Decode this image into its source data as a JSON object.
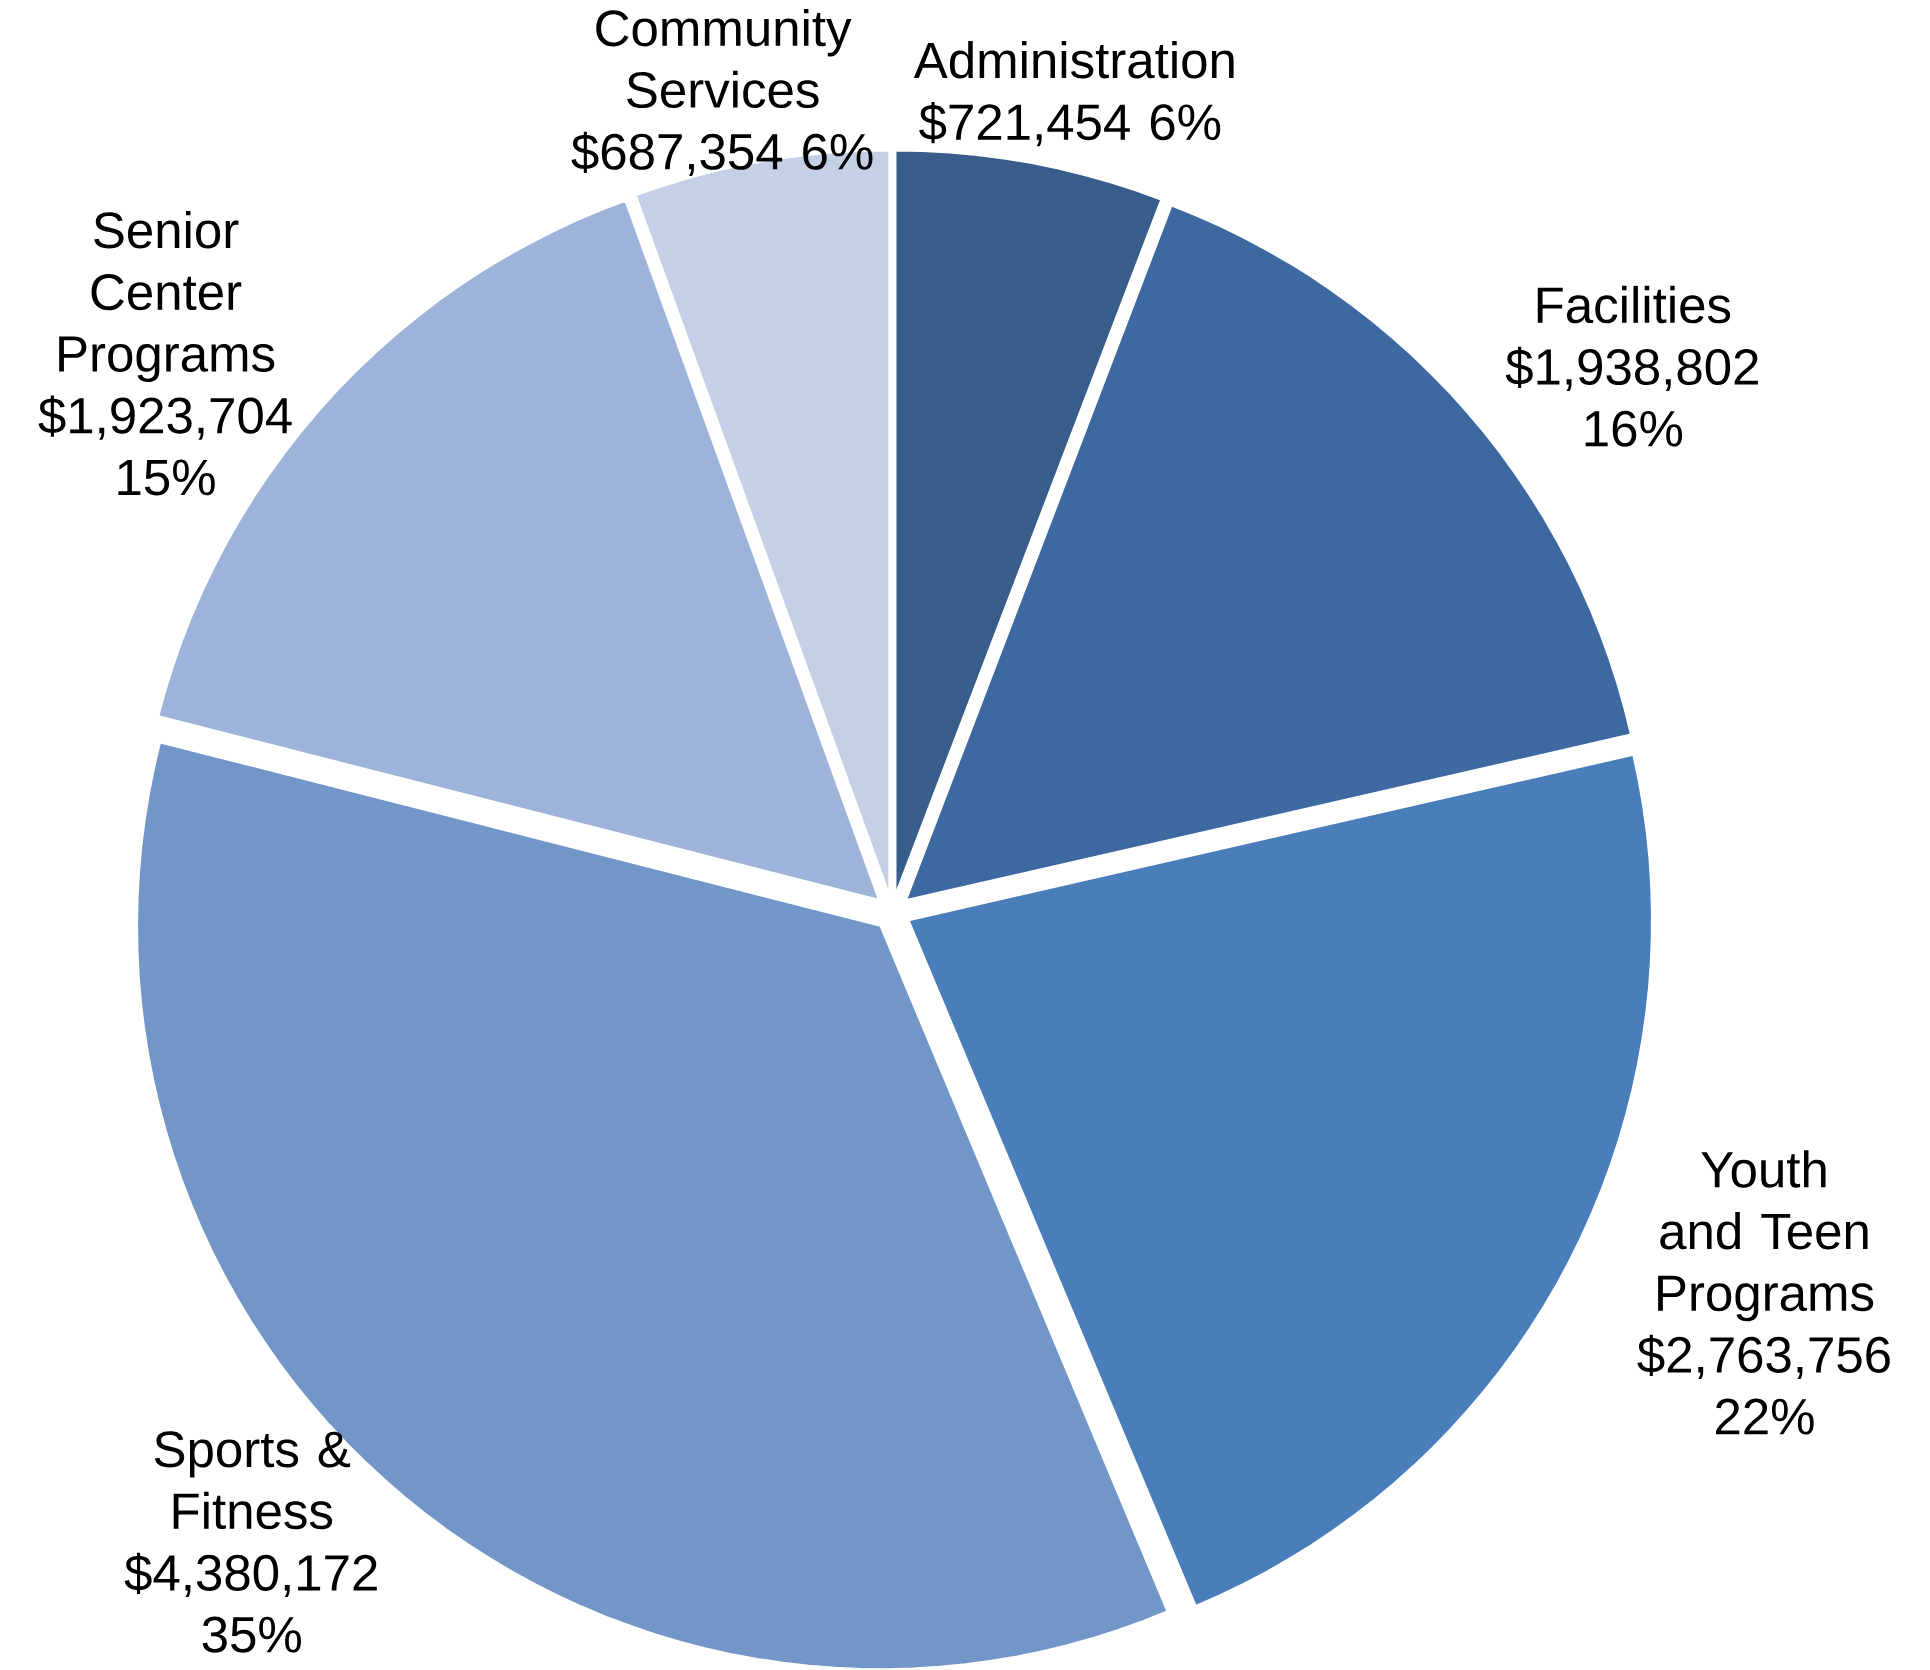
{
  "chart_data": {
    "type": "pie",
    "categories": [
      "Administration",
      "Facilities",
      "Youth and Teen Programs",
      "Sports & Fitness",
      "Senior Center Programs",
      "Community Services"
    ],
    "values": [
      721454,
      1938802,
      2763756,
      4380172,
      1923704,
      687354
    ],
    "value_labels": [
      "$721,454 6%",
      "$1,938,802 16%",
      "$2,763,756 22%",
      "$4,380,172 35%",
      "$1,923,704 15%",
      "$687,354 6%"
    ],
    "colors": [
      "#385d8a",
      "#3e69a0",
      "#4a7ebb",
      "#7396c8",
      "#9db3d9",
      "#c5d0e6"
    ]
  }
}
